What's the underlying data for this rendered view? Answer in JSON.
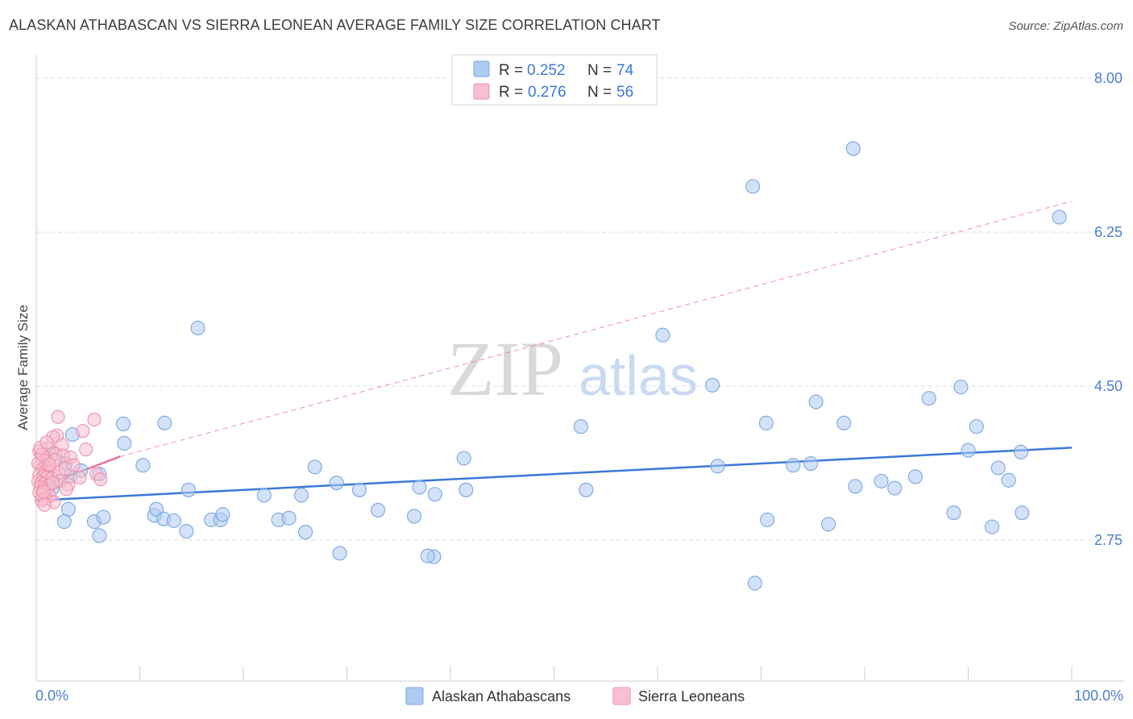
{
  "title": "ALASKAN ATHABASCAN VS SIERRA LEONEAN AVERAGE FAMILY SIZE CORRELATION CHART",
  "source": "Source: ZipAtlas.com",
  "watermark": {
    "zip": "ZIP",
    "atlas": "atlas"
  },
  "legend": {
    "rows": [
      {
        "r_label": "R =",
        "r_value": "0.252",
        "n_label": "N =",
        "n_value": "74",
        "color": "#aecbf2",
        "stroke": "#7aa7e0"
      },
      {
        "r_label": "R =",
        "r_value": "0.276",
        "n_label": "N =",
        "n_value": "56",
        "color": "#f8bfd0",
        "stroke": "#ee8fab"
      }
    ]
  },
  "bottom_legend": [
    {
      "label": "Alaskan Athabascans",
      "color": "#aecbf2",
      "stroke": "#7aa7e0"
    },
    {
      "label": "Sierra Leoneans",
      "color": "#f8bfd0",
      "stroke": "#ee8fab"
    }
  ],
  "chart_data": {
    "type": "scatter",
    "title": "ALASKAN ATHABASCAN VS SIERRA LEONEAN AVERAGE FAMILY SIZE CORRELATION CHART",
    "xlabel": "",
    "ylabel": "Average Family Size",
    "x_tick_labels": [
      "0.0%",
      "100.0%"
    ],
    "y_tick_labels": [
      "8.00",
      "6.25",
      "4.50",
      "2.75"
    ],
    "y_ticks": [
      8.0,
      6.25,
      4.5,
      2.75
    ],
    "xlim": [
      0,
      100
    ],
    "ylim": [
      1.25,
      8.2
    ],
    "grid": "horizontal dashed",
    "legend_position": "top-center",
    "series": [
      {
        "name": "Alaskan Athabascans",
        "color": "#aecbf2",
        "stroke": "#7aa7e0",
        "points": [
          [
            78.9,
            7.2
          ],
          [
            69.2,
            6.77
          ],
          [
            98.8,
            6.42
          ],
          [
            15.6,
            5.16
          ],
          [
            60.5,
            5.08
          ],
          [
            65.3,
            4.51
          ],
          [
            89.3,
            4.49
          ],
          [
            86.2,
            4.36
          ],
          [
            75.3,
            4.32
          ],
          [
            78.0,
            4.08
          ],
          [
            70.5,
            4.08
          ],
          [
            90.8,
            4.04
          ],
          [
            52.6,
            4.04
          ],
          [
            8.4,
            4.07
          ],
          [
            12.4,
            4.08
          ],
          [
            3.5,
            3.95
          ],
          [
            8.5,
            3.85
          ],
          [
            90.0,
            3.77
          ],
          [
            95.1,
            3.75
          ],
          [
            41.3,
            3.68
          ],
          [
            1.7,
            3.73
          ],
          [
            2.8,
            3.62
          ],
          [
            10.3,
            3.6
          ],
          [
            26.9,
            3.58
          ],
          [
            65.8,
            3.59
          ],
          [
            73.1,
            3.6
          ],
          [
            74.8,
            3.62
          ],
          [
            92.9,
            3.57
          ],
          [
            84.9,
            3.47
          ],
          [
            82.9,
            3.34
          ],
          [
            4.3,
            3.54
          ],
          [
            29.0,
            3.4
          ],
          [
            37.0,
            3.35
          ],
          [
            93.9,
            3.43
          ],
          [
            3.3,
            3.48
          ],
          [
            6.1,
            3.5
          ],
          [
            2.1,
            3.42
          ],
          [
            1.5,
            3.33
          ],
          [
            3.1,
            3.1
          ],
          [
            14.7,
            3.32
          ],
          [
            22.0,
            3.26
          ],
          [
            25.6,
            3.26
          ],
          [
            31.2,
            3.32
          ],
          [
            38.5,
            3.27
          ],
          [
            41.5,
            3.32
          ],
          [
            53.1,
            3.32
          ],
          [
            79.1,
            3.36
          ],
          [
            81.6,
            3.42
          ],
          [
            2.7,
            2.96
          ],
          [
            5.6,
            2.96
          ],
          [
            6.5,
            3.01
          ],
          [
            11.4,
            3.03
          ],
          [
            11.6,
            3.1
          ],
          [
            12.3,
            2.99
          ],
          [
            16.9,
            2.98
          ],
          [
            17.8,
            2.98
          ],
          [
            23.4,
            2.98
          ],
          [
            24.4,
            3.0
          ],
          [
            33.0,
            3.09
          ],
          [
            36.5,
            3.02
          ],
          [
            18.0,
            3.04
          ],
          [
            13.3,
            2.97
          ],
          [
            88.6,
            3.06
          ],
          [
            95.2,
            3.06
          ],
          [
            70.6,
            2.98
          ],
          [
            76.5,
            2.93
          ],
          [
            92.3,
            2.9
          ],
          [
            6.1,
            2.8
          ],
          [
            14.5,
            2.85
          ],
          [
            26.0,
            2.84
          ],
          [
            29.3,
            2.6
          ],
          [
            38.4,
            2.56
          ],
          [
            37.8,
            2.57
          ],
          [
            69.4,
            2.26
          ]
        ]
      },
      {
        "name": "Sierra Leoneans",
        "color": "#f8bfd0",
        "stroke": "#ee8fab",
        "points": [
          [
            2.1,
            4.15
          ],
          [
            5.6,
            4.12
          ],
          [
            4.5,
            3.99
          ],
          [
            2.0,
            3.94
          ],
          [
            1.6,
            3.92
          ],
          [
            2.5,
            3.83
          ],
          [
            1.2,
            3.79
          ],
          [
            0.3,
            3.76
          ],
          [
            4.8,
            3.78
          ],
          [
            1.9,
            3.73
          ],
          [
            2.6,
            3.71
          ],
          [
            3.3,
            3.69
          ],
          [
            0.5,
            3.72
          ],
          [
            0.9,
            3.65
          ],
          [
            1.1,
            3.64
          ],
          [
            0.4,
            3.6
          ],
          [
            0.8,
            3.58
          ],
          [
            1.3,
            3.57
          ],
          [
            0.2,
            3.62
          ],
          [
            0.6,
            3.55
          ],
          [
            0.9,
            3.53
          ],
          [
            1.4,
            3.52
          ],
          [
            0.3,
            3.49
          ],
          [
            0.7,
            3.47
          ],
          [
            1.0,
            3.46
          ],
          [
            1.5,
            3.45
          ],
          [
            0.2,
            3.42
          ],
          [
            0.5,
            3.4
          ],
          [
            0.8,
            3.39
          ],
          [
            1.2,
            3.37
          ],
          [
            0.4,
            3.35
          ],
          [
            0.7,
            3.33
          ],
          [
            1.1,
            3.31
          ],
          [
            0.3,
            3.29
          ],
          [
            0.6,
            3.27
          ],
          [
            1.3,
            3.25
          ],
          [
            0.9,
            3.22
          ],
          [
            0.5,
            3.2
          ],
          [
            1.7,
            3.18
          ],
          [
            0.8,
            3.15
          ],
          [
            2.2,
            3.52
          ],
          [
            2.8,
            3.56
          ],
          [
            3.6,
            3.6
          ],
          [
            4.2,
            3.46
          ],
          [
            0.6,
            3.72
          ],
          [
            1.8,
            3.66
          ],
          [
            2.4,
            3.42
          ],
          [
            3.1,
            3.38
          ],
          [
            0.4,
            3.8
          ],
          [
            1.0,
            3.86
          ],
          [
            5.8,
            3.5
          ],
          [
            6.2,
            3.44
          ],
          [
            0.7,
            3.3
          ],
          [
            1.6,
            3.4
          ],
          [
            2.9,
            3.33
          ],
          [
            1.3,
            3.61
          ]
        ]
      }
    ],
    "trend_lines": [
      {
        "series": "Alaskan Athabascans",
        "x": [
          0,
          100
        ],
        "y": [
          3.2,
          3.8
        ],
        "style": "solid",
        "color": "#3b78d8"
      },
      {
        "series": "Sierra Leoneans",
        "x": [
          0,
          8.1
        ],
        "y": [
          3.34,
          3.7
        ],
        "style": "solid",
        "color": "#e8729a"
      },
      {
        "series": "Sierra Leoneans",
        "x": [
          8.1,
          100
        ],
        "y": [
          3.7,
          6.6
        ],
        "style": "dashed",
        "color": "#e8729a"
      }
    ]
  }
}
